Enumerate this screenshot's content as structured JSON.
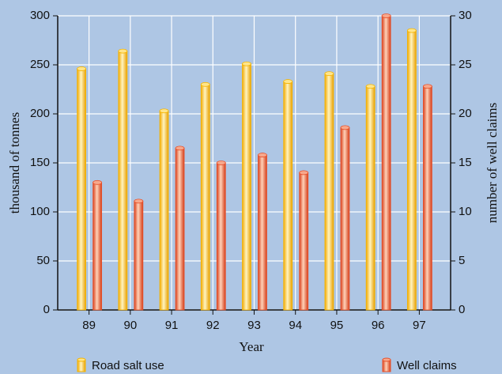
{
  "chart_data": {
    "type": "bar",
    "x_label": "Year",
    "y_label": "thousand of tonnes",
    "y2_label": "number of well claims",
    "categories": [
      "89",
      "90",
      "91",
      "92",
      "93",
      "94",
      "95",
      "96",
      "97"
    ],
    "series": [
      {
        "name": "Road salt use",
        "color": "#f5b400",
        "values": [
          246,
          264,
          203,
          230,
          251,
          233,
          241,
          228,
          285
        ]
      },
      {
        "name": "Well claims",
        "color": "#e8502a",
        "axis": "y2",
        "values": [
          13,
          11.1,
          16.5,
          15,
          15.8,
          14,
          18.6,
          30,
          22.8
        ]
      }
    ],
    "ylim": [
      0,
      300
    ],
    "yticks": [
      0,
      50,
      100,
      150,
      200,
      250,
      300
    ],
    "y2lim": [
      0,
      30
    ],
    "y2ticks": [
      0,
      5,
      10,
      15,
      20,
      25,
      30
    ],
    "grid": true
  }
}
